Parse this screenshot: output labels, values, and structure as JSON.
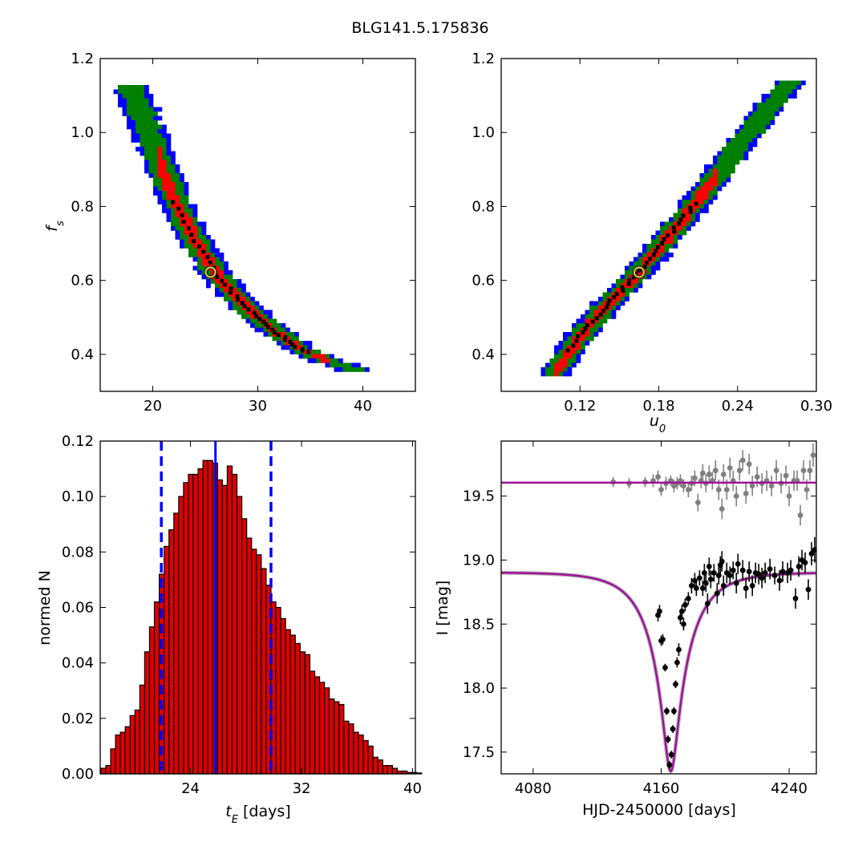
{
  "title": "BLG141.5.175836",
  "colors": {
    "contour_outer": "#0000ff",
    "contour_mid": "#007f00",
    "contour_inner": "#ff0000",
    "samples": "#000000",
    "best_fit_marker": "#d4c84a",
    "hist_fill": "#dd0000",
    "hist_lines": "#0000ff",
    "model": "#a0109a",
    "data_main": "#000000",
    "data_residual": "#808080"
  },
  "chart_data": [
    {
      "type": "heatmap",
      "panel": "top-left",
      "xlabel": "",
      "ylabel": "f_s",
      "xlim": [
        15,
        45
      ],
      "ylim": [
        0.3,
        1.2
      ],
      "xticks": [
        "20",
        "30",
        "40"
      ],
      "yticks": [
        "0.4",
        "0.6",
        "0.8",
        "1.0",
        "1.2"
      ],
      "best_fit": {
        "x": 25.5,
        "y": 0.622
      },
      "ridge": [
        [
          17.8,
          1.13
        ],
        [
          19.0,
          1.05
        ],
        [
          20.5,
          0.93
        ],
        [
          22.0,
          0.82
        ],
        [
          24.0,
          0.71
        ],
        [
          26.0,
          0.62
        ],
        [
          28.0,
          0.555
        ],
        [
          30.0,
          0.5
        ],
        [
          32.0,
          0.455
        ],
        [
          34.0,
          0.415
        ],
        [
          36.5,
          0.385
        ],
        [
          39.5,
          0.355
        ]
      ],
      "band_widths": {
        "outer": 1.6,
        "mid": 1.15,
        "inner": 0.55
      },
      "red_range": [
        20.5,
        37.0
      ]
    },
    {
      "type": "heatmap",
      "panel": "top-right",
      "xlabel": "u_0",
      "ylabel": "",
      "xlim": [
        0.06,
        0.3
      ],
      "ylim": [
        0.3,
        1.2
      ],
      "xticks": [
        "0.12",
        "0.18",
        "0.24",
        "0.30"
      ],
      "yticks": [
        "0.4",
        "0.6",
        "0.8",
        "1.0",
        "1.2"
      ],
      "best_fit": {
        "x": 0.165,
        "y": 0.622
      },
      "ridge": [
        [
          0.1,
          0.345
        ],
        [
          0.12,
          0.45
        ],
        [
          0.14,
          0.53
        ],
        [
          0.165,
          0.622
        ],
        [
          0.19,
          0.73
        ],
        [
          0.215,
          0.84
        ],
        [
          0.24,
          0.96
        ],
        [
          0.265,
          1.07
        ],
        [
          0.28,
          1.135
        ]
      ],
      "band_widths": {
        "outer": 0.012,
        "mid": 0.009,
        "inner": 0.0045
      },
      "red_range": [
        0.1,
        0.225
      ]
    },
    {
      "type": "bar",
      "panel": "bottom-left",
      "xlabel": "t_E [days]",
      "ylabel": "normed N",
      "xlim": [
        17.5,
        40.2
      ],
      "ylim": [
        0,
        0.12
      ],
      "xticks": [
        "24",
        "32",
        "40"
      ],
      "yticks": [
        "0.00",
        "0.02",
        "0.04",
        "0.06",
        "0.08",
        "0.10",
        "0.12"
      ],
      "bin_start": 17.55,
      "bin_width": 0.35,
      "values": [
        0.002,
        0.003,
        0.009,
        0.014,
        0.015,
        0.017,
        0.021,
        0.023,
        0.032,
        0.044,
        0.053,
        0.062,
        0.072,
        0.082,
        0.088,
        0.094,
        0.1,
        0.105,
        0.108,
        0.108,
        0.11,
        0.113,
        0.113,
        0.112,
        0.106,
        0.104,
        0.111,
        0.108,
        0.1,
        0.092,
        0.085,
        0.081,
        0.079,
        0.074,
        0.068,
        0.062,
        0.06,
        0.056,
        0.052,
        0.05,
        0.047,
        0.044,
        0.043,
        0.037,
        0.035,
        0.033,
        0.031,
        0.027,
        0.026,
        0.025,
        0.019,
        0.018,
        0.015,
        0.014,
        0.012,
        0.01,
        0.006,
        0.005,
        0.003,
        0.003,
        0.002,
        0.001,
        0.001,
        0.0005,
        0.0005,
        0.0003
      ],
      "median": 25.8,
      "lower": 21.9,
      "upper": 29.8
    },
    {
      "type": "scatter",
      "panel": "bottom-right",
      "xlabel": "HJD-2450000 [days]",
      "ylabel": "I [mag]",
      "xlim": [
        4060,
        4257
      ],
      "ylim": [
        19.93,
        17.33
      ],
      "xticks": [
        "4080",
        "4160",
        "4240"
      ],
      "yticks": [
        "17.5",
        "18.0",
        "18.5",
        "19.0",
        "19.5"
      ],
      "model": {
        "t0": 4166.0,
        "tE": 25.8,
        "u0": 0.165,
        "baseline": 18.905,
        "blend_mag": 0.0,
        "fs": 0.622
      },
      "residual_baseline": 19.605,
      "series": [
        {
          "name": "",
          "points": [
            [
              4158.0,
              18.57,
              0.05
            ],
            [
              4159.0,
              18.6,
              0.05
            ],
            [
              4160.0,
              18.37,
              0.04
            ],
            [
              4161.0,
              18.38,
              0.04
            ],
            [
              4162.5,
              18.16,
              0.03
            ],
            [
              4163.5,
              17.82,
              0.03
            ],
            [
              4164.3,
              17.6,
              0.03
            ],
            [
              4165.2,
              17.4,
              0.03
            ],
            [
              4166.4,
              17.48,
              0.03
            ],
            [
              4167.3,
              17.68,
              0.03
            ],
            [
              4168.0,
              17.82,
              0.03
            ],
            [
              4169.0,
              18.03,
              0.03
            ],
            [
              4170.0,
              18.2,
              0.04
            ],
            [
              4171.0,
              18.3,
              0.05
            ],
            [
              4172.0,
              18.55,
              0.05
            ],
            [
              4173.0,
              18.6,
              0.05
            ],
            [
              4174.0,
              18.5,
              0.05
            ],
            [
              4175.0,
              18.65,
              0.05
            ],
            [
              4177.0,
              18.7,
              0.05
            ],
            [
              4179.0,
              18.8,
              0.06
            ],
            [
              4181.0,
              18.84,
              0.06
            ],
            [
              4182.0,
              18.78,
              0.06
            ],
            [
              4184.0,
              18.86,
              0.06
            ],
            [
              4186.0,
              18.78,
              0.06
            ],
            [
              4187.0,
              18.9,
              0.07
            ],
            [
              4188.0,
              18.82,
              0.07
            ],
            [
              4189.0,
              18.66,
              0.08
            ],
            [
              4190.0,
              18.95,
              0.07
            ],
            [
              4191.0,
              18.85,
              0.07
            ],
            [
              4193.0,
              18.9,
              0.07
            ],
            [
              4195.0,
              18.74,
              0.08
            ],
            [
              4196.0,
              18.88,
              0.07
            ],
            [
              4197.0,
              18.96,
              0.07
            ],
            [
              4198.0,
              18.99,
              0.08
            ],
            [
              4199.0,
              18.8,
              0.08
            ],
            [
              4201.0,
              18.9,
              0.08
            ],
            [
              4203.0,
              18.88,
              0.07
            ],
            [
              4205.0,
              18.92,
              0.07
            ],
            [
              4207.0,
              18.82,
              0.08
            ],
            [
              4208.0,
              18.97,
              0.08
            ],
            [
              4211.0,
              18.92,
              0.08
            ],
            [
              4213.0,
              18.78,
              0.08
            ],
            [
              4215.0,
              18.91,
              0.08
            ],
            [
              4217.0,
              18.8,
              0.08
            ],
            [
              4219.0,
              18.9,
              0.08
            ],
            [
              4221.0,
              18.89,
              0.08
            ],
            [
              4223.0,
              18.86,
              0.08
            ],
            [
              4225.0,
              18.9,
              0.08
            ],
            [
              4228.0,
              18.93,
              0.08
            ],
            [
              4231.0,
              18.88,
              0.07
            ],
            [
              4234.0,
              18.84,
              0.08
            ],
            [
              4236.0,
              18.91,
              0.08
            ],
            [
              4239.0,
              18.9,
              0.08
            ],
            [
              4241.0,
              18.92,
              0.08
            ],
            [
              4244.0,
              18.7,
              0.08
            ],
            [
              4246.0,
              18.95,
              0.08
            ],
            [
              4248.0,
              19.0,
              0.08
            ],
            [
              4250.0,
              18.98,
              0.08
            ],
            [
              4252.0,
              18.77,
              0.08
            ],
            [
              4254.0,
              19.05,
              0.09
            ],
            [
              4256.0,
              19.08,
              0.1
            ]
          ]
        },
        {
          "name": "",
          "points": [
            [
              4130.0,
              19.61,
              0.04
            ],
            [
              4140.0,
              19.6,
              0.04
            ],
            [
              4150.0,
              19.61,
              0.04
            ],
            [
              4155.0,
              19.62,
              0.05
            ],
            [
              4158.0,
              19.65,
              0.05
            ],
            [
              4160.0,
              19.55,
              0.05
            ],
            [
              4163.0,
              19.6,
              0.05
            ],
            [
              4166.0,
              19.62,
              0.04
            ],
            [
              4168.0,
              19.58,
              0.05
            ],
            [
              4170.0,
              19.6,
              0.05
            ],
            [
              4172.0,
              19.62,
              0.05
            ],
            [
              4174.0,
              19.58,
              0.05
            ],
            [
              4177.0,
              19.55,
              0.06
            ],
            [
              4179.0,
              19.6,
              0.06
            ],
            [
              4181.0,
              19.64,
              0.06
            ],
            [
              4183.0,
              19.45,
              0.07
            ],
            [
              4185.0,
              19.62,
              0.06
            ],
            [
              4186.0,
              19.68,
              0.07
            ],
            [
              4188.0,
              19.6,
              0.07
            ],
            [
              4190.0,
              19.67,
              0.07
            ],
            [
              4192.0,
              19.62,
              0.07
            ],
            [
              4194.0,
              19.7,
              0.08
            ],
            [
              4196.0,
              19.55,
              0.08
            ],
            [
              4198.0,
              19.4,
              0.08
            ],
            [
              4199.0,
              19.67,
              0.08
            ],
            [
              4201.0,
              19.55,
              0.08
            ],
            [
              4203.0,
              19.72,
              0.08
            ],
            [
              4205.0,
              19.62,
              0.08
            ],
            [
              4207.0,
              19.5,
              0.08
            ],
            [
              4209.0,
              19.7,
              0.08
            ],
            [
              4211.0,
              19.78,
              0.08
            ],
            [
              4213.0,
              19.52,
              0.08
            ],
            [
              4215.0,
              19.75,
              0.08
            ],
            [
              4217.0,
              19.58,
              0.08
            ],
            [
              4220.0,
              19.65,
              0.08
            ],
            [
              4223.0,
              19.6,
              0.08
            ],
            [
              4226.0,
              19.62,
              0.08
            ],
            [
              4229.0,
              19.58,
              0.08
            ],
            [
              4232.0,
              19.7,
              0.08
            ],
            [
              4235.0,
              19.6,
              0.08
            ],
            [
              4238.0,
              19.66,
              0.08
            ],
            [
              4240.0,
              19.5,
              0.08
            ],
            [
              4243.0,
              19.62,
              0.08
            ],
            [
              4245.0,
              19.62,
              0.08
            ],
            [
              4247.0,
              19.35,
              0.08
            ],
            [
              4249.0,
              19.7,
              0.08
            ],
            [
              4251.0,
              19.55,
              0.08
            ],
            [
              4253.0,
              19.7,
              0.08
            ],
            [
              4255.0,
              19.82,
              0.09
            ]
          ]
        }
      ]
    }
  ]
}
